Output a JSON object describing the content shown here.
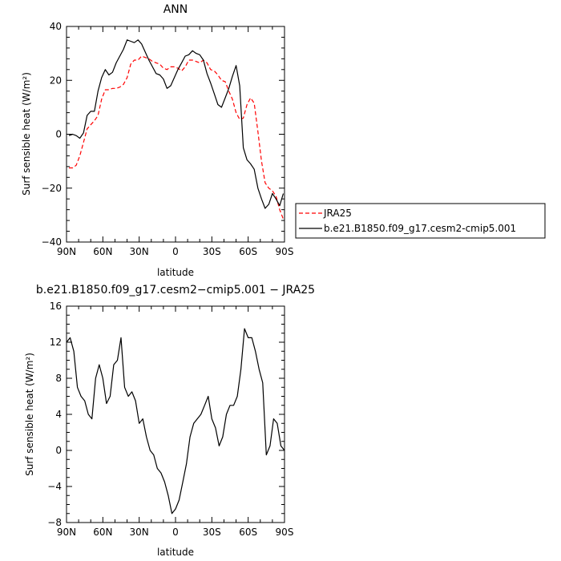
{
  "chart_data": [
    {
      "type": "line",
      "title": "ANN",
      "xlabel": "latitude",
      "ylabel": "Surf sensible heat (W/m²)",
      "xlim": [
        90,
        -90
      ],
      "ylim": [
        -40,
        40
      ],
      "x_ticks": [
        90,
        60,
        30,
        0,
        -30,
        -60,
        -90
      ],
      "x_tick_labels": [
        "90N",
        "60N",
        "30N",
        "0",
        "30S",
        "60S",
        "90S"
      ],
      "y_ticks": [
        -40,
        -20,
        0,
        20,
        40
      ],
      "y_tick_labels": [
        "−40",
        "−20",
        "0",
        "20",
        "40"
      ],
      "legend_position": "right",
      "series": [
        {
          "name": "JRA25",
          "color": "#ff0000",
          "style": "dashed",
          "x": [
            88,
            85,
            82,
            79,
            76,
            73,
            70,
            67,
            64,
            61,
            58,
            55,
            52,
            49,
            46,
            43,
            40,
            37,
            34,
            31,
            28,
            25,
            22,
            19,
            16,
            13,
            10,
            7,
            4,
            1,
            -2,
            -5,
            -8,
            -11,
            -14,
            -17,
            -20,
            -23,
            -26,
            -29,
            -32,
            -35,
            -38,
            -41,
            -44,
            -47,
            -50,
            -53,
            -56,
            -59,
            -62,
            -65,
            -68,
            -71,
            -74,
            -77,
            -80,
            -83,
            -86,
            -89
          ],
          "values": [
            -12.5,
            -12.5,
            -11.5,
            -8,
            -3,
            2,
            3.5,
            5,
            7,
            13,
            16.5,
            16.5,
            17,
            17,
            17.5,
            18.5,
            21,
            26,
            27.5,
            27.5,
            29,
            28.5,
            28,
            27,
            26.5,
            26,
            24.5,
            24,
            25,
            25,
            24.5,
            23.5,
            25,
            27.5,
            27.5,
            27,
            26.5,
            27.5,
            26.5,
            24,
            23.5,
            22,
            20,
            19.5,
            16,
            13,
            8,
            5.5,
            6,
            11,
            13.5,
            11.5,
            1,
            -10,
            -18,
            -20,
            -21,
            -23,
            -28,
            -31.5
          ]
        },
        {
          "name": "b.e21.B1850.f09_g17.cesm2-cmip5.001",
          "color": "#000000",
          "style": "solid",
          "x": [
            88,
            85,
            82,
            79,
            76,
            73,
            70,
            67,
            64,
            61,
            58,
            55,
            52,
            49,
            46,
            43,
            40,
            37,
            34,
            31,
            28,
            25,
            22,
            19,
            16,
            13,
            10,
            7,
            4,
            1,
            -2,
            -5,
            -8,
            -11,
            -14,
            -17,
            -20,
            -23,
            -26,
            -29,
            -32,
            -35,
            -38,
            -41,
            -44,
            -47,
            -50,
            -53,
            -56,
            -59,
            -62,
            -65,
            -68,
            -71,
            -74,
            -77,
            -80,
            -83,
            -86,
            -89
          ],
          "values": [
            -0.5,
            0,
            -0.5,
            -1.5,
            0.5,
            7,
            8.5,
            8.5,
            16,
            21,
            24,
            22,
            23,
            26.5,
            29,
            31.5,
            35,
            34.5,
            34,
            35,
            33.5,
            30.5,
            27.5,
            25,
            22.5,
            22,
            20.5,
            17,
            18,
            21,
            24,
            26.5,
            29,
            29.5,
            31,
            30,
            29.5,
            27.5,
            22.5,
            19,
            15,
            11,
            10,
            13.5,
            17,
            21.5,
            25.5,
            18,
            -5,
            -9.5,
            -11,
            -13,
            -20,
            -24,
            -27.5,
            -26,
            -22,
            -24,
            -26.5,
            -22
          ]
        }
      ]
    },
    {
      "type": "line",
      "title": "b.e21.B1850.f09_g17.cesm2−cmip5.001 − JRA25",
      "xlabel": "latitude",
      "ylabel": "Surf sensible heat (W/m²)",
      "xlim": [
        90,
        -90
      ],
      "ylim": [
        -8,
        16
      ],
      "x_ticks": [
        90,
        60,
        30,
        0,
        -30,
        -60,
        -90
      ],
      "x_tick_labels": [
        "90N",
        "60N",
        "30N",
        "0",
        "30S",
        "60S",
        "90S"
      ],
      "y_ticks": [
        -8,
        -4,
        0,
        4,
        8,
        12,
        16
      ],
      "y_tick_labels": [
        "−8",
        "−4",
        "0",
        "4",
        "8",
        "12",
        "16"
      ],
      "series": [
        {
          "color": "#000000",
          "style": "solid",
          "x": [
            90,
            87,
            84,
            81,
            78,
            75,
            72,
            69,
            66,
            63,
            60,
            57,
            54,
            51,
            48,
            45,
            42,
            39,
            36,
            33,
            30,
            27,
            24,
            21,
            18,
            15,
            12,
            9,
            6,
            3,
            0,
            -3,
            -6,
            -9,
            -12,
            -15,
            -18,
            -21,
            -24,
            -27,
            -30,
            -33,
            -36,
            -39,
            -42,
            -45,
            -48,
            -51,
            -54,
            -57,
            -60,
            -63,
            -66,
            -69,
            -72,
            -75,
            -78,
            -81,
            -84,
            -87,
            -90
          ],
          "values": [
            12,
            12.5,
            11,
            7,
            6,
            5.5,
            4,
            3.5,
            8,
            9.5,
            8,
            5.2,
            6,
            9.5,
            10,
            12.5,
            7,
            6,
            6.5,
            5.5,
            3,
            3.5,
            1.5,
            0,
            -0.5,
            -2,
            -2.5,
            -3.5,
            -5,
            -7,
            -6.5,
            -5.5,
            -3.5,
            -1.5,
            1.5,
            3,
            3.5,
            4,
            5,
            6,
            3.5,
            2.5,
            0.5,
            1.5,
            4,
            5,
            5,
            6,
            9,
            13.5,
            12.5,
            12.5,
            11,
            9,
            7.5,
            -0.5,
            0.5,
            3.5,
            3,
            0.5,
            0
          ]
        }
      ]
    }
  ]
}
